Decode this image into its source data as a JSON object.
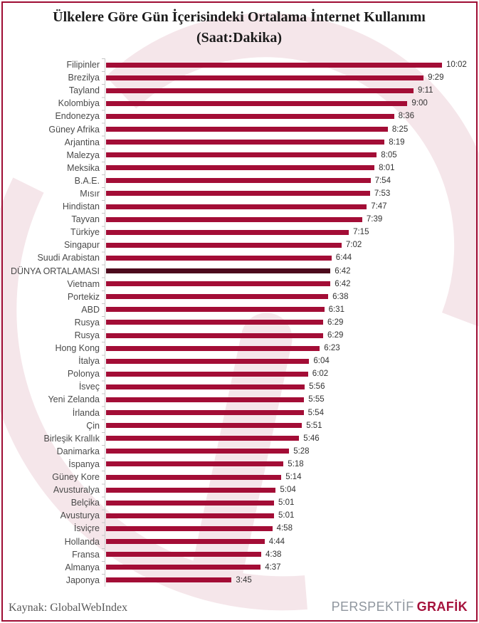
{
  "title": "Ülkelere Göre Gün İçerisindeki Ortalama İnternet Kullanımı (Saat:Dakika)",
  "footer": {
    "source": "Kaynak: GlobalWebIndex",
    "brand_part1": "PERSPEKTİF",
    "brand_part2": "GRAFİK"
  },
  "colors": {
    "bar": "#a30d36",
    "bar_highlight": "#4c0a1d",
    "frame": "#9e0c33",
    "watermark": "#f5e6ea",
    "axis": "#cccccc",
    "label_text": "#4a4a4a",
    "value_text": "#333333"
  },
  "chart_data": {
    "type": "bar",
    "orientation": "horizontal",
    "title": "Ülkelere Göre Gün İçerisindeki Ortalama İnternet Kullanımı (Saat:Dakika)",
    "value_format": "hours:minutes",
    "xlim_minutes": [
      0,
      602
    ],
    "highlight_category": "DÜNYA ORTALAMASI",
    "highlight_index": 16,
    "categories": [
      "Filipinler",
      "Brezilya",
      "Tayland",
      "Kolombiya",
      "Endonezya",
      "Güney Afrika",
      "Arjantina",
      "Malezya",
      "Meksika",
      "B.A.E.",
      "Mısır",
      "Hindistan",
      "Tayvan",
      "Türkiye",
      "Singapur",
      "Suudi Arabistan",
      "DÜNYA ORTALAMASI",
      "Vietnam",
      "Portekiz",
      "ABD",
      "Rusya",
      "Rusya",
      "Hong Kong",
      "İtalya",
      "Polonya",
      "İsveç",
      "Yeni Zelanda",
      "İrlanda",
      "Çin",
      "Birleşik Krallık",
      "Danimarka",
      "İspanya",
      "Güney Kore",
      "Avusturalya",
      "Belçika",
      "Avusturya",
      "İsviçre",
      "Hollanda",
      "Fransa",
      "Almanya",
      "Japonya"
    ],
    "values": [
      "10:02",
      "9:29",
      "9:11",
      "9:00",
      "8:36",
      "8:25",
      "8:19",
      "8:05",
      "8:01",
      "7:54",
      "7:53",
      "7:47",
      "7:39",
      "7:15",
      "7:02",
      "6:44",
      "6:42",
      "6:42",
      "6:38",
      "6:31",
      "6:29",
      "6:29",
      "6:23",
      "6:04",
      "6:02",
      "5:56",
      "5:55",
      "5:54",
      "5:51",
      "5:46",
      "5:28",
      "5:18",
      "5:14",
      "5:04",
      "5:01",
      "5:01",
      "4:58",
      "4:44",
      "4:38",
      "4:37",
      "3:45"
    ]
  }
}
